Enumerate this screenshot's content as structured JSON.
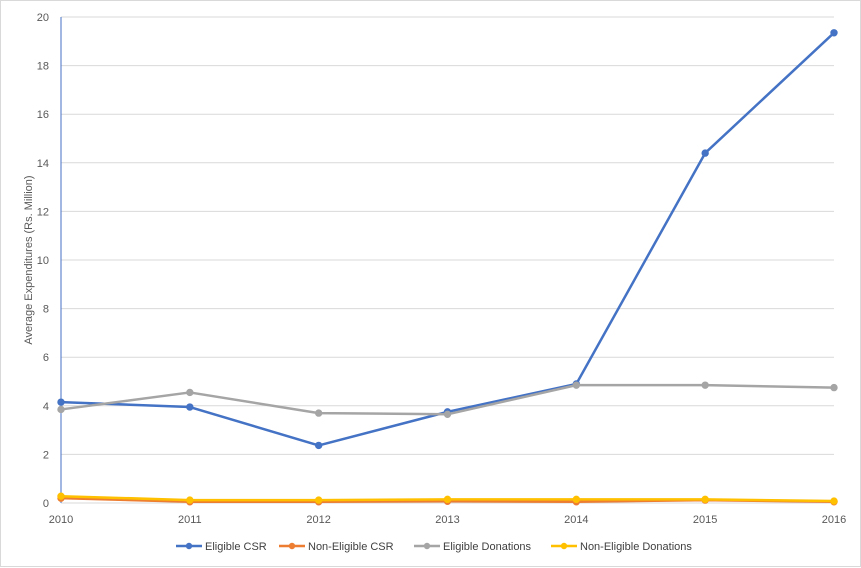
{
  "chart_data": {
    "type": "line",
    "title": "",
    "xlabel": "",
    "ylabel": "Average Expenditures (Rs. Million)",
    "categories": [
      "2010",
      "2011",
      "2012",
      "2013",
      "2014",
      "2015",
      "2016"
    ],
    "ylim": [
      0,
      20
    ],
    "yticks": [
      0,
      2,
      4,
      6,
      8,
      10,
      12,
      14,
      16,
      18,
      20
    ],
    "grid": true,
    "legend_position": "bottom",
    "series": [
      {
        "name": "Eligible CSR",
        "color": "#4472c4",
        "values": [
          4.15,
          3.95,
          2.37,
          3.75,
          4.9,
          14.4,
          19.35
        ]
      },
      {
        "name": "Non-Eligible CSR",
        "color": "#ed7d31",
        "values": [
          0.2,
          0.05,
          0.05,
          0.07,
          0.05,
          0.12,
          0.05
        ]
      },
      {
        "name": "Eligible Donations",
        "color": "#a5a5a5",
        "values": [
          3.85,
          4.55,
          3.7,
          3.65,
          4.85,
          4.85,
          4.75
        ]
      },
      {
        "name": "Non-Eligible Donations",
        "color": "#ffc000",
        "values": [
          0.28,
          0.12,
          0.12,
          0.15,
          0.15,
          0.15,
          0.08
        ]
      }
    ]
  }
}
